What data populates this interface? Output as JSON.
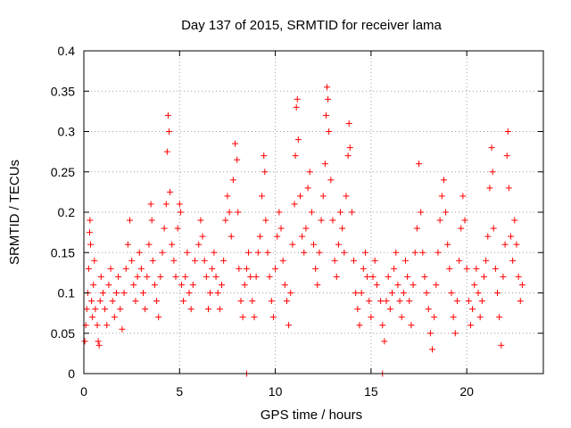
{
  "chart_data": {
    "type": "scatter",
    "title": "Day 137 of 2015, SRMTID for receiver lama",
    "xlabel": "GPS time / hours",
    "ylabel": "SRMTID / TECUs",
    "xlim": [
      0,
      24
    ],
    "ylim": [
      0,
      0.4
    ],
    "xticks": [
      0,
      5,
      10,
      15,
      20
    ],
    "xtick_labels": [
      "0",
      "5",
      "10",
      "15",
      "20"
    ],
    "yticks": [
      0,
      0.05,
      0.1,
      0.15,
      0.2,
      0.25,
      0.3,
      0.35,
      0.4
    ],
    "ytick_labels": [
      "0",
      "0.05",
      "0.1",
      "0.15",
      "0.2",
      "0.25",
      "0.3",
      "0.35",
      "0.4"
    ],
    "grid": true,
    "marker": "plus",
    "color": "#ff0000",
    "series": [
      {
        "name": "SRMTID",
        "points": [
          [
            0.05,
            0.04
          ],
          [
            0.1,
            0.06
          ],
          [
            0.15,
            0.08
          ],
          [
            0.2,
            0.1
          ],
          [
            0.25,
            0.13
          ],
          [
            0.3,
            0.175
          ],
          [
            0.32,
            0.19
          ],
          [
            0.35,
            0.16
          ],
          [
            0.4,
            0.09
          ],
          [
            0.45,
            0.07
          ],
          [
            0.5,
            0.11
          ],
          [
            0.55,
            0.14
          ],
          [
            0.6,
            0.08
          ],
          [
            0.7,
            0.06
          ],
          [
            0.75,
            0.04
          ],
          [
            0.8,
            0.035
          ],
          [
            0.85,
            0.09
          ],
          [
            0.9,
            0.12
          ],
          [
            1.0,
            0.1
          ],
          [
            1.1,
            0.08
          ],
          [
            1.2,
            0.06
          ],
          [
            1.3,
            0.11
          ],
          [
            1.4,
            0.13
          ],
          [
            1.5,
            0.09
          ],
          [
            1.6,
            0.07
          ],
          [
            1.7,
            0.1
          ],
          [
            1.8,
            0.12
          ],
          [
            1.9,
            0.08
          ],
          [
            2.0,
            0.055
          ],
          [
            2.1,
            0.1
          ],
          [
            2.2,
            0.13
          ],
          [
            2.3,
            0.16
          ],
          [
            2.4,
            0.19
          ],
          [
            2.5,
            0.14
          ],
          [
            2.6,
            0.11
          ],
          [
            2.7,
            0.09
          ],
          [
            2.8,
            0.12
          ],
          [
            2.9,
            0.15
          ],
          [
            3.0,
            0.13
          ],
          [
            3.1,
            0.1
          ],
          [
            3.2,
            0.08
          ],
          [
            3.3,
            0.12
          ],
          [
            3.4,
            0.16
          ],
          [
            3.5,
            0.21
          ],
          [
            3.55,
            0.19
          ],
          [
            3.6,
            0.14
          ],
          [
            3.7,
            0.11
          ],
          [
            3.8,
            0.09
          ],
          [
            3.9,
            0.07
          ],
          [
            4.0,
            0.12
          ],
          [
            4.1,
            0.15
          ],
          [
            4.2,
            0.18
          ],
          [
            4.3,
            0.21
          ],
          [
            4.35,
            0.275
          ],
          [
            4.4,
            0.32
          ],
          [
            4.45,
            0.3
          ],
          [
            4.5,
            0.225
          ],
          [
            4.6,
            0.16
          ],
          [
            4.7,
            0.14
          ],
          [
            4.8,
            0.12
          ],
          [
            4.9,
            0.18
          ],
          [
            5.0,
            0.21
          ],
          [
            5.05,
            0.2
          ],
          [
            5.1,
            0.11
          ],
          [
            5.2,
            0.09
          ],
          [
            5.3,
            0.12
          ],
          [
            5.4,
            0.15
          ],
          [
            5.5,
            0.1
          ],
          [
            5.6,
            0.08
          ],
          [
            5.7,
            0.11
          ],
          [
            5.8,
            0.14
          ],
          [
            6.0,
            0.16
          ],
          [
            6.1,
            0.19
          ],
          [
            6.2,
            0.17
          ],
          [
            6.3,
            0.14
          ],
          [
            6.4,
            0.12
          ],
          [
            6.5,
            0.08
          ],
          [
            6.6,
            0.1
          ],
          [
            6.7,
            0.13
          ],
          [
            6.8,
            0.15
          ],
          [
            6.9,
            0.12
          ],
          [
            7.0,
            0.1
          ],
          [
            7.1,
            0.08
          ],
          [
            7.2,
            0.11
          ],
          [
            7.3,
            0.14
          ],
          [
            7.4,
            0.19
          ],
          [
            7.5,
            0.22
          ],
          [
            7.6,
            0.2
          ],
          [
            7.7,
            0.17
          ],
          [
            7.8,
            0.24
          ],
          [
            7.9,
            0.285
          ],
          [
            8.0,
            0.265
          ],
          [
            8.05,
            0.2
          ],
          [
            8.1,
            0.13
          ],
          [
            8.2,
            0.09
          ],
          [
            8.3,
            0.07
          ],
          [
            8.4,
            0.11
          ],
          [
            8.5,
            0.13
          ],
          [
            8.6,
            0.15
          ],
          [
            8.7,
            0.12
          ],
          [
            8.8,
            0.09
          ],
          [
            8.9,
            0.07
          ],
          [
            9.0,
            0.12
          ],
          [
            9.1,
            0.15
          ],
          [
            9.2,
            0.17
          ],
          [
            9.3,
            0.22
          ],
          [
            9.4,
            0.27
          ],
          [
            9.45,
            0.25
          ],
          [
            9.5,
            0.19
          ],
          [
            9.6,
            0.15
          ],
          [
            9.7,
            0.12
          ],
          [
            9.8,
            0.09
          ],
          [
            9.9,
            0.07
          ],
          [
            10.0,
            0.13
          ],
          [
            10.1,
            0.17
          ],
          [
            10.2,
            0.2
          ],
          [
            10.3,
            0.18
          ],
          [
            10.4,
            0.14
          ],
          [
            10.5,
            0.11
          ],
          [
            10.6,
            0.09
          ],
          [
            10.7,
            0.06
          ],
          [
            10.8,
            0.1
          ],
          [
            10.9,
            0.16
          ],
          [
            11.0,
            0.21
          ],
          [
            11.05,
            0.27
          ],
          [
            11.1,
            0.33
          ],
          [
            11.15,
            0.34
          ],
          [
            11.2,
            0.29
          ],
          [
            11.3,
            0.22
          ],
          [
            11.4,
            0.17
          ],
          [
            11.5,
            0.15
          ],
          [
            11.6,
            0.18
          ],
          [
            11.7,
            0.23
          ],
          [
            11.8,
            0.25
          ],
          [
            11.9,
            0.2
          ],
          [
            12.0,
            0.16
          ],
          [
            12.1,
            0.13
          ],
          [
            12.2,
            0.11
          ],
          [
            12.3,
            0.15
          ],
          [
            12.4,
            0.19
          ],
          [
            12.5,
            0.22
          ],
          [
            12.6,
            0.26
          ],
          [
            12.65,
            0.32
          ],
          [
            12.7,
            0.355
          ],
          [
            12.75,
            0.34
          ],
          [
            12.8,
            0.3
          ],
          [
            12.9,
            0.24
          ],
          [
            13.0,
            0.19
          ],
          [
            13.1,
            0.14
          ],
          [
            13.2,
            0.12
          ],
          [
            13.3,
            0.16
          ],
          [
            13.4,
            0.2
          ],
          [
            13.5,
            0.18
          ],
          [
            13.6,
            0.15
          ],
          [
            13.7,
            0.22
          ],
          [
            13.8,
            0.27
          ],
          [
            13.85,
            0.31
          ],
          [
            13.9,
            0.28
          ],
          [
            14.0,
            0.2
          ],
          [
            14.1,
            0.14
          ],
          [
            14.2,
            0.1
          ],
          [
            14.3,
            0.08
          ],
          [
            14.4,
            0.06
          ],
          [
            14.5,
            0.1
          ],
          [
            14.6,
            0.13
          ],
          [
            14.7,
            0.15
          ],
          [
            14.8,
            0.12
          ],
          [
            14.9,
            0.09
          ],
          [
            15.0,
            0.07
          ],
          [
            15.1,
            0.12
          ],
          [
            15.2,
            0.14
          ],
          [
            15.3,
            0.11
          ],
          [
            15.5,
            0.09
          ],
          [
            15.6,
            0.06
          ],
          [
            15.7,
            0.04
          ],
          [
            15.8,
            0.09
          ],
          [
            15.9,
            0.12
          ],
          [
            16.0,
            0.08
          ],
          [
            16.1,
            0.1
          ],
          [
            16.2,
            0.13
          ],
          [
            16.3,
            0.15
          ],
          [
            16.4,
            0.11
          ],
          [
            16.5,
            0.09
          ],
          [
            16.6,
            0.07
          ],
          [
            16.7,
            0.1
          ],
          [
            16.8,
            0.14
          ],
          [
            16.9,
            0.12
          ],
          [
            17.0,
            0.09
          ],
          [
            17.1,
            0.06
          ],
          [
            17.2,
            0.11
          ],
          [
            17.3,
            0.15
          ],
          [
            17.4,
            0.18
          ],
          [
            17.5,
            0.26
          ],
          [
            17.6,
            0.2
          ],
          [
            17.7,
            0.15
          ],
          [
            17.8,
            0.12
          ],
          [
            17.9,
            0.1
          ],
          [
            18.0,
            0.08
          ],
          [
            18.1,
            0.05
          ],
          [
            18.2,
            0.03
          ],
          [
            18.3,
            0.07
          ],
          [
            18.4,
            0.11
          ],
          [
            18.5,
            0.15
          ],
          [
            18.6,
            0.19
          ],
          [
            18.7,
            0.22
          ],
          [
            18.8,
            0.24
          ],
          [
            18.9,
            0.2
          ],
          [
            19.0,
            0.16
          ],
          [
            19.1,
            0.13
          ],
          [
            19.2,
            0.1
          ],
          [
            19.3,
            0.07
          ],
          [
            19.4,
            0.05
          ],
          [
            19.5,
            0.09
          ],
          [
            19.6,
            0.14
          ],
          [
            19.7,
            0.18
          ],
          [
            19.8,
            0.22
          ],
          [
            19.9,
            0.19
          ],
          [
            20.0,
            0.13
          ],
          [
            20.1,
            0.09
          ],
          [
            20.2,
            0.06
          ],
          [
            20.3,
            0.08
          ],
          [
            20.4,
            0.11
          ],
          [
            20.5,
            0.13
          ],
          [
            20.6,
            0.1
          ],
          [
            20.7,
            0.07
          ],
          [
            20.8,
            0.09
          ],
          [
            20.9,
            0.12
          ],
          [
            21.0,
            0.14
          ],
          [
            21.1,
            0.17
          ],
          [
            21.2,
            0.23
          ],
          [
            21.3,
            0.28
          ],
          [
            21.35,
            0.25
          ],
          [
            21.4,
            0.18
          ],
          [
            21.5,
            0.13
          ],
          [
            21.6,
            0.1
          ],
          [
            21.7,
            0.07
          ],
          [
            21.8,
            0.035
          ],
          [
            21.9,
            0.12
          ],
          [
            22.0,
            0.16
          ],
          [
            22.1,
            0.27
          ],
          [
            22.15,
            0.3
          ],
          [
            22.2,
            0.23
          ],
          [
            22.3,
            0.17
          ],
          [
            22.4,
            0.14
          ],
          [
            22.5,
            0.19
          ],
          [
            22.6,
            0.16
          ],
          [
            22.7,
            0.12
          ],
          [
            22.8,
            0.09
          ],
          [
            22.9,
            0.11
          ],
          [
            8.5,
            0.0
          ],
          [
            15.6,
            0.0
          ]
        ]
      }
    ]
  }
}
